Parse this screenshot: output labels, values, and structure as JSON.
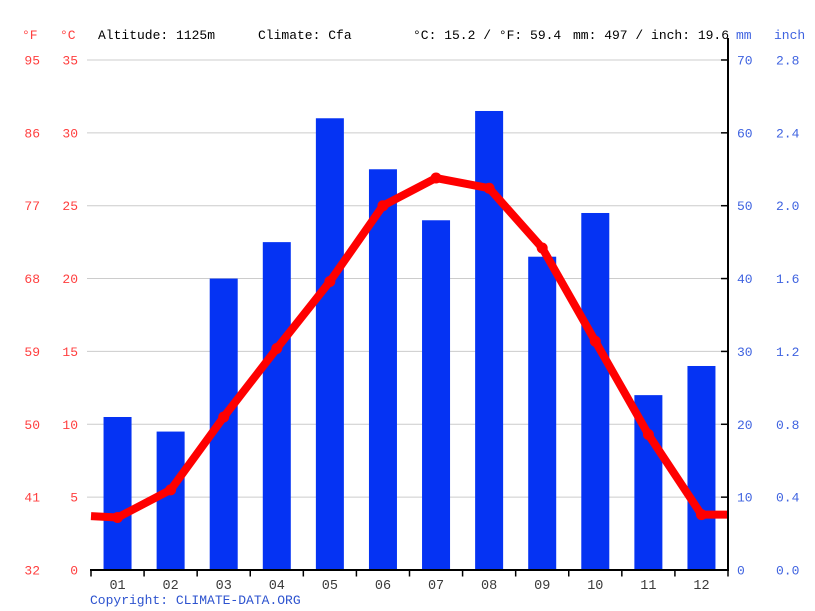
{
  "header": {
    "f_unit": "°F",
    "c_unit": "°C",
    "altitude": "Altitude: 1125m",
    "climate": "Climate: Cfa",
    "temp_summary": "°C: 15.2 / °F: 59.4",
    "precip_summary": "mm: 497 / inch: 19.6",
    "mm_unit": "mm",
    "inch_unit": "inch"
  },
  "axes": {
    "left_f_ticks": [
      "95",
      "86",
      "77",
      "68",
      "59",
      "50",
      "41",
      "32"
    ],
    "left_c_ticks": [
      "35",
      "30",
      "25",
      "20",
      "15",
      "10",
      "5",
      "0"
    ],
    "right_mm_ticks": [
      "70",
      "60",
      "50",
      "40",
      "30",
      "20",
      "10",
      "0"
    ],
    "right_inch_ticks": [
      "2.8",
      "2.4",
      "2.0",
      "1.6",
      "1.2",
      "0.8",
      "0.4",
      "0.0"
    ]
  },
  "chart_data": {
    "type": "bar+line",
    "categories": [
      "01",
      "02",
      "03",
      "04",
      "05",
      "06",
      "07",
      "08",
      "09",
      "10",
      "11",
      "12"
    ],
    "series": [
      {
        "name": "Precipitation (mm)",
        "type": "bar",
        "axis": "precip_mm",
        "values": [
          21,
          19,
          40,
          45,
          62,
          55,
          48,
          63,
          43,
          49,
          24,
          28
        ]
      },
      {
        "name": "Temperature (°C)",
        "type": "line",
        "axis": "temp_c",
        "values": [
          3.6,
          5.5,
          10.5,
          15.2,
          19.8,
          25.0,
          26.9,
          26.2,
          22.1,
          15.7,
          9.3,
          3.8
        ],
        "edge_start": 3.7,
        "edge_end": 3.8
      }
    ],
    "axis_ranges": {
      "temp_c": [
        0,
        35
      ],
      "precip_mm": [
        0,
        70
      ]
    },
    "grid": true,
    "legend": "none"
  },
  "footer": {
    "copyright_label": "Copyright: ",
    "link_text": "CLIMATE-DATA.ORG"
  },
  "colors": {
    "bar_blue": "#0533f3",
    "line_red": "#ff0000",
    "label_red": "#ff3e3e",
    "label_blue": "#3f63e0",
    "month_label": "#3b3b3b",
    "gridline": "#cccccc",
    "axis": "#000000",
    "copyright_blue": "#2d53cf"
  }
}
